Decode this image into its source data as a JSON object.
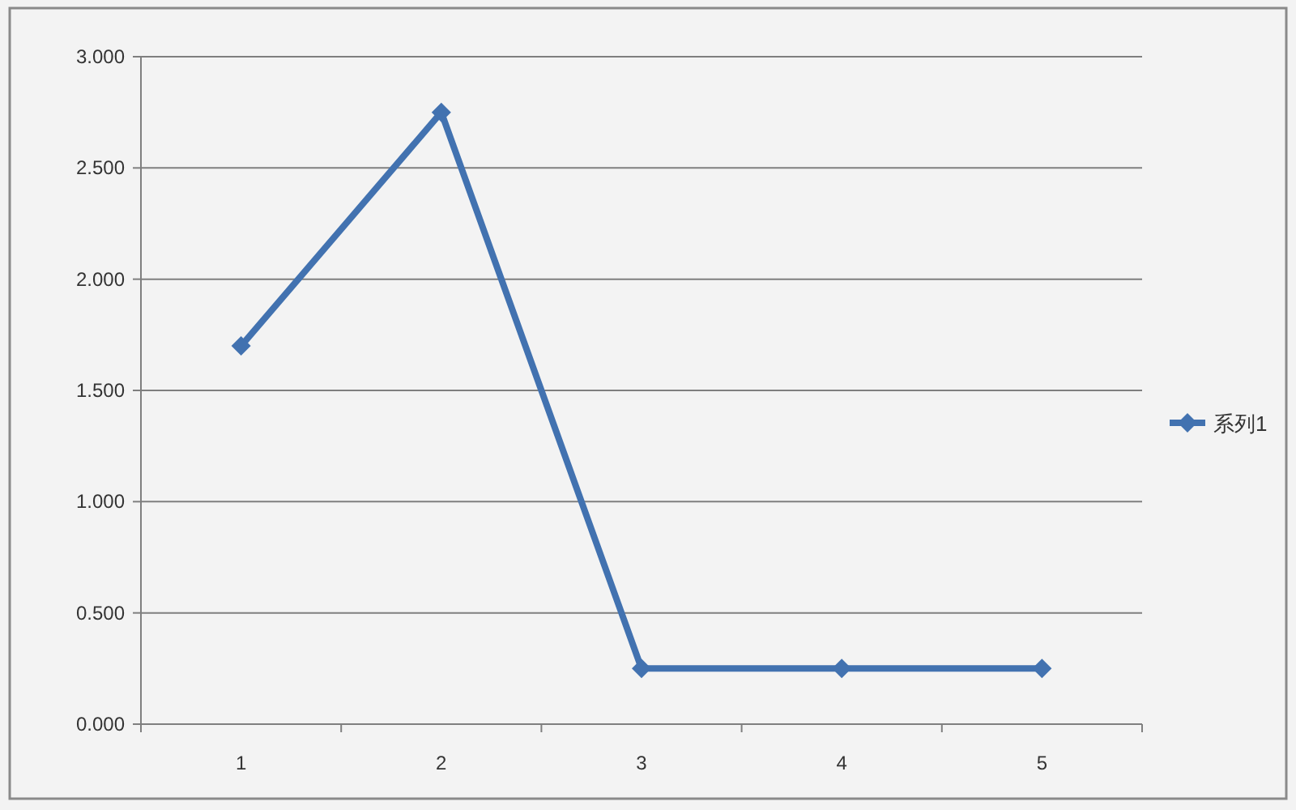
{
  "chart_data": {
    "type": "line",
    "categories": [
      "1",
      "2",
      "3",
      "4",
      "5"
    ],
    "series": [
      {
        "name": "系列1",
        "color": "#4272b0",
        "values": [
          1.7,
          2.75,
          0.25,
          0.25,
          0.25
        ]
      }
    ],
    "ylim": [
      0,
      3
    ],
    "yticks": [
      {
        "value": 0,
        "label": "0.000"
      },
      {
        "value": 0.5,
        "label": "0.500"
      },
      {
        "value": 1,
        "label": "1.000"
      },
      {
        "value": 1.5,
        "label": "1.500"
      },
      {
        "value": 2,
        "label": "2.000"
      },
      {
        "value": 2.5,
        "label": "2.500"
      },
      {
        "value": 3,
        "label": "3.000"
      }
    ],
    "grid": "y",
    "legend": "right",
    "marker": "diamond",
    "line_style": "solid"
  }
}
